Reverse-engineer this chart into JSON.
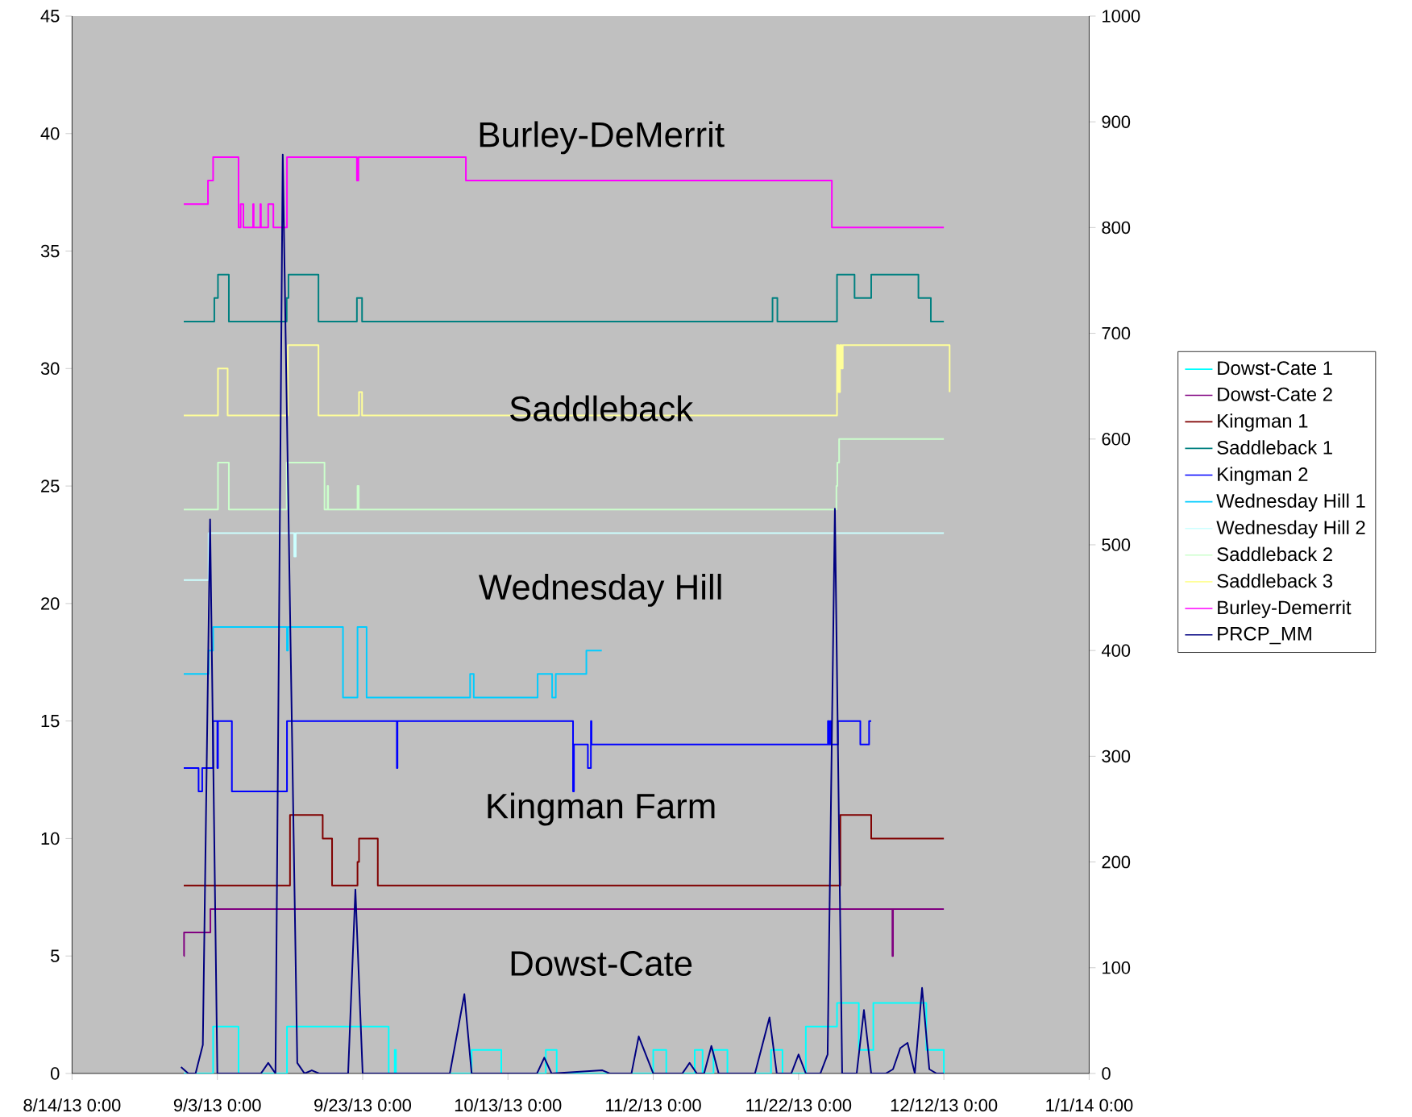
{
  "chart_data": {
    "type": "step",
    "xlim": [
      "2013-08-14",
      "2014-01-01"
    ],
    "xticks": [
      {
        "value": "2013-08-14",
        "label": "8/14/13 0:00"
      },
      {
        "value": "2013-09-03",
        "label": "9/3/13 0:00"
      },
      {
        "value": "2013-09-23",
        "label": "9/23/13 0:00"
      },
      {
        "value": "2013-10-13",
        "label": "10/13/13 0:00"
      },
      {
        "value": "2013-11-02",
        "label": "11/2/13 0:00"
      },
      {
        "value": "2013-11-22",
        "label": "11/22/13 0:00"
      },
      {
        "value": "2013-12-12",
        "label": "12/12/13 0:00"
      },
      {
        "value": "2014-01-01",
        "label": "1/1/14 0:00"
      }
    ],
    "ylim": [
      0,
      45
    ],
    "yticks": [
      0,
      5,
      10,
      15,
      20,
      25,
      30,
      35,
      40,
      45
    ],
    "y2lim": [
      0,
      1000
    ],
    "y2ticks": [
      0,
      100,
      200,
      300,
      400,
      500,
      600,
      700,
      800,
      900,
      1000
    ],
    "legend": "right",
    "annotations": [
      "Burley-DeMerrit",
      "Saddleback",
      "Wednesday Hill",
      "Kingman Farm",
      "Dowst-Cate"
    ],
    "series": [
      {
        "name": "Dowst-Cate 1",
        "color": "#00ffff",
        "x": [
          "2013-08-29T09:00",
          "2013-09-02T10:00",
          "2013-09-05T22:00",
          "2013-09-12T14:00",
          "2013-09-26T14:00",
          "2013-09-27T10:00",
          "2013-09-27T14:00",
          "2013-10-08T00:00",
          "2013-10-12T02:00",
          "2013-10-18T05:00",
          "2013-10-19T17:00",
          "2013-11-02T00:00",
          "2013-11-03T19:00",
          "2013-11-07T17:00",
          "2013-11-08T19:00",
          "2013-11-10T07:00",
          "2013-11-12T05:00",
          "2013-11-18T05:00",
          "2013-11-19T19:00",
          "2013-11-23T00:00",
          "2013-11-27T07:00",
          "2013-11-30T07:00",
          "2013-12-02T07:00",
          "2013-12-09T14:00",
          "2013-12-12T00:00"
        ],
        "values": [
          0,
          2,
          0,
          2,
          0,
          1,
          0,
          1,
          0,
          1,
          0,
          1,
          0,
          1,
          0,
          1,
          0,
          1,
          0,
          2,
          3,
          1,
          3,
          1,
          0
        ]
      },
      {
        "name": "Dowst-Cate 2",
        "color": "#800080",
        "x": [
          "2013-08-29T09:00",
          "2013-08-29T10:00",
          "2013-09-02T01:00",
          "2013-12-04T22:00",
          "2013-12-05T00:00",
          "2013-12-12T00:00"
        ],
        "values": [
          5,
          6,
          7,
          5,
          7,
          7
        ]
      },
      {
        "name": "Kingman 1",
        "color": "#800000",
        "x": [
          "2013-08-29T09:00",
          "2013-09-13T00:00",
          "2013-09-17T12:00",
          "2013-09-18T19:00",
          "2013-09-22T07:00",
          "2013-09-22T12:00",
          "2013-09-25T02:00",
          "2013-11-27T18:00",
          "2013-12-02T00:00",
          "2013-12-12T00:00"
        ],
        "values": [
          8,
          11,
          10,
          8,
          9,
          10,
          8,
          11,
          10,
          10
        ]
      },
      {
        "name": "Saddleback 1",
        "color": "#008080",
        "x": [
          "2013-08-29T09:00",
          "2013-09-02T14:00",
          "2013-09-03T02:00",
          "2013-09-04T14:00",
          "2013-09-12T13:00",
          "2013-09-12T19:00",
          "2013-09-16T22:00",
          "2013-09-22T05:00",
          "2013-09-22T22:00",
          "2013-11-18T10:00",
          "2013-11-19T02:00",
          "2013-11-27T07:00",
          "2013-11-29T17:00",
          "2013-12-02T00:00",
          "2013-12-08T12:00",
          "2013-12-10T05:00",
          "2013-12-12T00:00"
        ],
        "values": [
          32,
          33,
          34,
          32,
          33,
          34,
          32,
          33,
          32,
          33,
          32,
          34,
          33,
          34,
          33,
          32,
          32
        ]
      },
      {
        "name": "Kingman 2",
        "color": "#0000ff",
        "x": [
          "2013-08-29T09:00",
          "2013-08-31T10:00",
          "2013-08-31T22:00",
          "2013-09-02T10:00",
          "2013-09-03T00:00",
          "2013-09-03T02:00",
          "2013-09-05T00:00",
          "2013-09-12T14:00",
          "2013-09-27T17:00",
          "2013-09-27T19:00",
          "2013-10-21T23:00",
          "2013-10-22T02:00",
          "2013-10-24T00:00",
          "2013-10-24T10:00",
          "2013-10-24T12:00",
          "2013-11-26T01:00",
          "2013-11-26T04:00",
          "2013-11-26T08:00",
          "2013-11-26T11:00",
          "2013-11-27T10:00",
          "2013-11-30T12:00",
          "2013-12-01T17:00",
          "2013-12-02T00:00"
        ],
        "values": [
          13,
          12,
          13,
          15,
          13,
          15,
          12,
          15,
          13,
          15,
          12,
          14,
          13,
          15,
          14,
          15,
          14,
          15,
          14,
          15,
          14,
          15,
          15
        ]
      },
      {
        "name": "Wednesday Hill 1",
        "color": "#00ccff",
        "x": [
          "2013-08-29T09:00",
          "2013-09-01T19:00",
          "2013-09-02T10:00",
          "2013-09-12T14:00",
          "2013-09-12T17:00",
          "2013-09-20T07:00",
          "2013-09-22T07:00",
          "2013-09-23T13:00",
          "2013-10-07T19:00",
          "2013-10-08T07:00",
          "2013-10-17T02:00",
          "2013-10-19T02:00",
          "2013-10-19T14:00",
          "2013-10-23T19:00",
          "2013-10-25T22:00"
        ],
        "values": [
          17,
          18,
          19,
          18,
          19,
          16,
          19,
          16,
          17,
          16,
          17,
          16,
          17,
          18,
          18
        ]
      },
      {
        "name": "Wednesday Hill 2",
        "color": "#ccffff",
        "x": [
          "2013-08-29T09:00",
          "2013-09-01T19:00",
          "2013-09-13T14:00",
          "2013-09-13T19:00",
          "2013-12-12T00:00"
        ],
        "values": [
          21,
          23,
          22,
          23,
          23
        ]
      },
      {
        "name": "Saddleback 2",
        "color": "#ccffcc",
        "x": [
          "2013-08-29T09:00",
          "2013-09-03T02:00",
          "2013-09-04T14:00",
          "2013-09-12T13:00",
          "2013-09-17T18:00",
          "2013-09-18T04:00",
          "2013-09-18T06:00",
          "2013-09-22T07:00",
          "2013-09-22T11:00",
          "2013-11-27T05:00",
          "2013-11-27T08:00",
          "2013-11-27T14:00",
          "2013-12-12T00:00"
        ],
        "values": [
          24,
          26,
          24,
          26,
          24,
          25,
          24,
          25,
          24,
          25,
          26,
          27,
          27
        ]
      },
      {
        "name": "Saddleback 3",
        "color": "#ffff99",
        "x": [
          "2013-08-29T09:00",
          "2013-09-03T02:00",
          "2013-09-04T10:00",
          "2013-09-12T17:00",
          "2013-09-16T22:00",
          "2013-09-22T12:00",
          "2013-09-22T22:00",
          "2013-11-27T07:00",
          "2013-11-27T12:00",
          "2013-11-27T17:00",
          "2013-11-27T22:00",
          "2013-11-28T02:00",
          "2013-12-12T19:00"
        ],
        "values": [
          28,
          30,
          28,
          31,
          28,
          29,
          28,
          31,
          29,
          31,
          30,
          31,
          29
        ]
      },
      {
        "name": "Burley-Demerrit",
        "color": "#ff00ff",
        "x": [
          "2013-08-29T09:00",
          "2013-09-01T17:00",
          "2013-09-02T10:00",
          "2013-09-05T22:00",
          "2013-09-06T05:00",
          "2013-09-06T14:00",
          "2013-09-07T22:00",
          "2013-09-08T00:00",
          "2013-09-08T22:00",
          "2013-09-09T00:00",
          "2013-09-10T00:00",
          "2013-09-10T17:00",
          "2013-09-12T14:00",
          "2013-09-22T05:00",
          "2013-09-22T10:00",
          "2013-10-07T05:00",
          "2013-11-26T14:00",
          "2013-12-12T00:00"
        ],
        "values": [
          37,
          38,
          39,
          36,
          37,
          36,
          37,
          36,
          37,
          36,
          37,
          36,
          39,
          38,
          39,
          38,
          36,
          36
        ]
      },
      {
        "name": "PRCP_MM",
        "type": "line",
        "axis": "y2",
        "color": "#000080",
        "x": [
          "2013-08-29",
          "2013-08-30",
          "2013-08-31",
          "2013-09-01",
          "2013-09-02",
          "2013-09-03",
          "2013-09-09",
          "2013-09-10",
          "2013-09-11",
          "2013-09-12",
          "2013-09-14",
          "2013-09-15",
          "2013-09-16",
          "2013-09-17",
          "2013-09-21",
          "2013-09-22",
          "2013-09-23",
          "2013-10-05",
          "2013-10-07",
          "2013-10-08",
          "2013-10-17",
          "2013-10-18",
          "2013-10-19",
          "2013-10-26",
          "2013-10-27",
          "2013-10-30",
          "2013-10-31",
          "2013-11-02",
          "2013-11-06",
          "2013-11-07",
          "2013-11-08",
          "2013-11-09",
          "2013-11-10",
          "2013-11-11",
          "2013-11-16",
          "2013-11-18",
          "2013-11-19",
          "2013-11-21",
          "2013-11-22",
          "2013-11-23",
          "2013-11-25",
          "2013-11-26",
          "2013-11-27",
          "2013-11-28",
          "2013-11-30",
          "2013-12-01",
          "2013-12-02",
          "2013-12-04",
          "2013-12-05",
          "2013-12-06",
          "2013-12-07",
          "2013-12-08",
          "2013-12-09",
          "2013-12-10",
          "2013-12-11",
          "2013-12-12"
        ],
        "values": [
          6,
          0,
          0,
          27,
          524,
          0,
          0,
          10,
          0,
          869,
          10,
          0,
          3,
          0,
          0,
          174,
          0,
          0,
          75,
          0,
          0,
          15,
          0,
          3,
          0,
          0,
          35,
          0,
          0,
          10,
          0,
          0,
          26,
          0,
          0,
          53,
          0,
          0,
          18,
          0,
          0,
          18,
          534,
          0,
          0,
          60,
          0,
          0,
          4,
          24,
          29,
          0,
          81,
          4,
          0,
          0
        ]
      }
    ]
  }
}
